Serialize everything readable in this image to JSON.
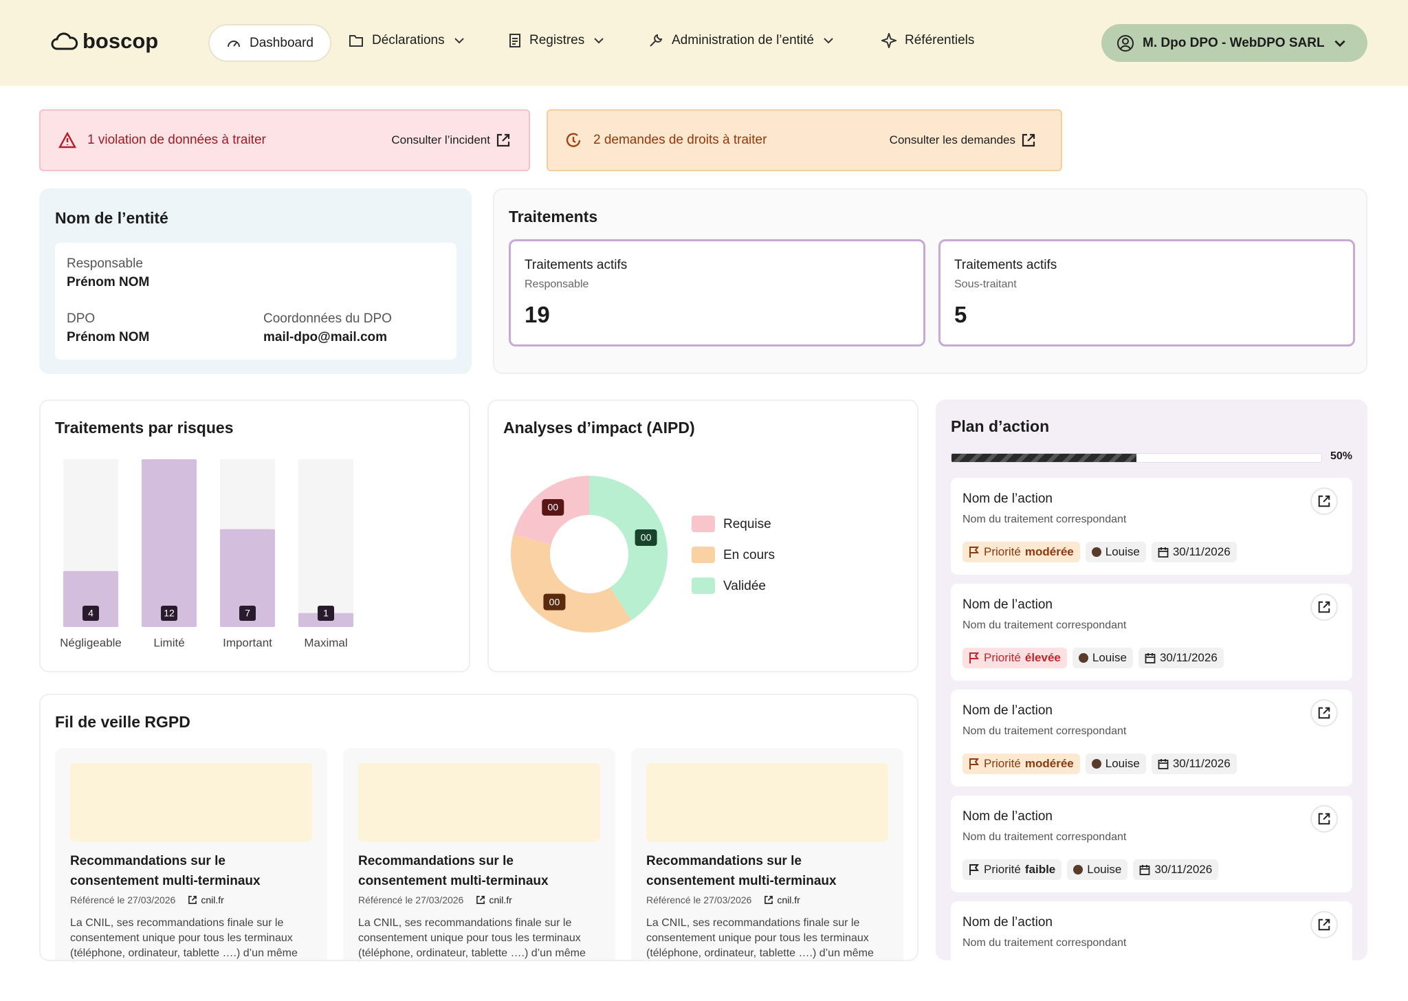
{
  "header": {
    "logo": "boscop",
    "nav": [
      "Dashboard",
      "Déclarations",
      "Registres",
      "Administration de l’entité",
      "Référentiels"
    ],
    "user": "M. Dpo DPO - WebDPO SARL"
  },
  "alerts": [
    {
      "text": "1 violation de données à traiter",
      "link": "Consulter l’incident"
    },
    {
      "text": "2 demandes de droits à traiter",
      "link": "Consulter les demandes"
    }
  ],
  "entity": {
    "title": "Nom de l’entité",
    "fields": [
      {
        "label": "Responsable",
        "value": "Prénom NOM"
      },
      {
        "label": "DPO",
        "value": "Prénom NOM"
      },
      {
        "label": "Coordonnées du DPO",
        "value": "mail-dpo@mail.com"
      }
    ]
  },
  "treatments": {
    "title": "Traitements",
    "cards": [
      {
        "title": "Traitements actifs",
        "subtitle": "Responsable",
        "count": 19
      },
      {
        "title": "Traitements actifs",
        "subtitle": "Sous-traitant",
        "count": 5
      }
    ]
  },
  "risks": {
    "title": "Traitements par risques",
    "type": "bar",
    "categories": [
      "Négligeable",
      "Limité",
      "Important",
      "Maximal"
    ],
    "values": [
      4,
      12,
      7,
      1
    ],
    "ylim": [
      0,
      12
    ],
    "color": "#d3bfdd"
  },
  "aipd": {
    "title": "Analyses d’impact (AIPD)",
    "type": "pie",
    "segments": [
      {
        "name": "Requise",
        "color": "#f8c5cc",
        "share": 21,
        "badge": "00",
        "badge_color": "#5a1616"
      },
      {
        "name": "En cours",
        "color": "#fad1a3",
        "share": 38,
        "badge": "00",
        "badge_color": "#5c2a0c"
      },
      {
        "name": "Validée",
        "color": "#b7efd0",
        "share": 41,
        "badge": "00",
        "badge_color": "#17452b"
      }
    ]
  },
  "plan": {
    "title": "Plan d’action",
    "progress": {
      "value": 50,
      "label": "50%"
    },
    "actions": [
      {
        "title": "Nom de l’action",
        "subtitle": "Nom du traitement correspondant",
        "priority_prefix": "Priorité",
        "priority": "modérée",
        "priority_color": "#8a3a0f",
        "priority_bg": "#fde8d2",
        "owner": "Louise",
        "date": "30/11/2026"
      },
      {
        "title": "Nom de l’action",
        "subtitle": "Nom du traitement correspondant",
        "priority_prefix": "Priorité",
        "priority": "élevée",
        "priority_color": "#c0262d",
        "priority_bg": "#fde0e2",
        "owner": "Louise",
        "date": "30/11/2026"
      },
      {
        "title": "Nom de l’action",
        "subtitle": "Nom du traitement correspondant",
        "priority_prefix": "Priorité",
        "priority": "modérée",
        "priority_color": "#8a3a0f",
        "priority_bg": "#fde8d2",
        "owner": "Louise",
        "date": "30/11/2026"
      },
      {
        "title": "Nom de l’action",
        "subtitle": "Nom du traitement correspondant",
        "priority_prefix": "Priorité",
        "priority": "faible",
        "priority_color": "#222222",
        "priority_bg": "#f1f1f1",
        "owner": "Louise",
        "date": "30/11/2026"
      },
      {
        "title": "Nom de l’action",
        "subtitle": "Nom du traitement correspondant"
      }
    ]
  },
  "news": {
    "title": "Fil de veille RGPD",
    "items": [
      {
        "title": "Recommandations sur le consentement multi-terminaux",
        "meta": "Référencé le 27/03/2026",
        "source": "cnil.fr",
        "excerpt": "La CNIL, ses recommandations finale sur le consentement unique pour tous les terminaux (téléphone, ordinateur, tablette ….) d’un même"
      },
      {
        "title": "Recommandations sur le consentement multi-terminaux",
        "meta": "Référencé le 27/03/2026",
        "source": "cnil.fr",
        "excerpt": "La CNIL, ses recommandations finale sur le consentement unique pour tous les terminaux (téléphone, ordinateur, tablette ….) d’un même"
      },
      {
        "title": "Recommandations sur le consentement multi-terminaux",
        "meta": "Référencé le 27/03/2026",
        "source": "cnil.fr",
        "excerpt": "La CNIL, ses recommandations finale sur le consentement unique pour tous les terminaux (téléphone, ordinateur, tablette ….) d’un même"
      }
    ]
  }
}
